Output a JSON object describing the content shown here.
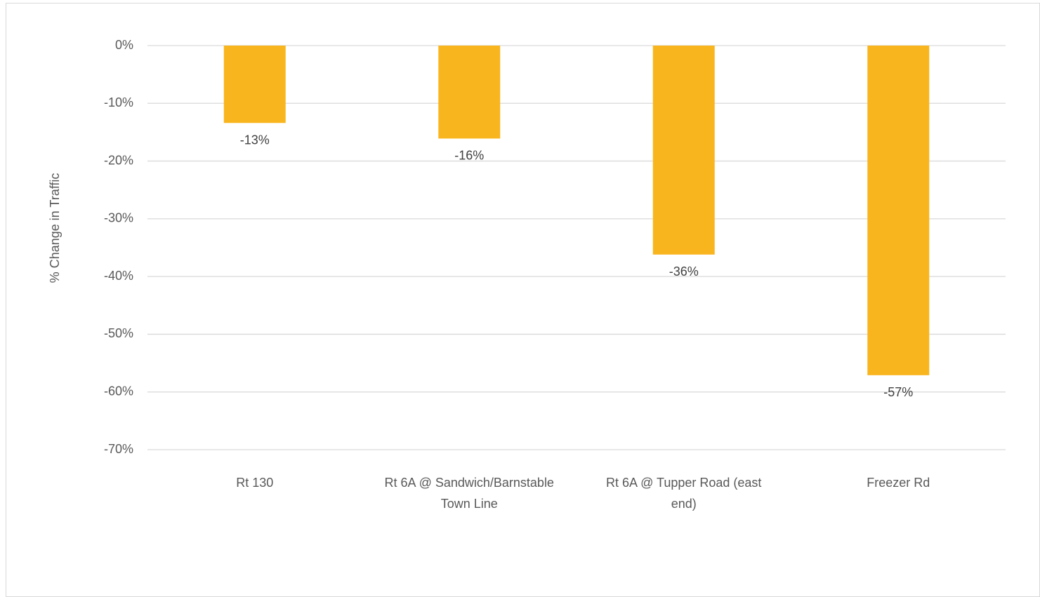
{
  "chart_data": {
    "type": "bar",
    "title": "",
    "xlabel": "",
    "ylabel": "% Change in Traffic",
    "categories": [
      [
        "Rt 130"
      ],
      [
        "Rt 6A @ Sandwich/Barnstable",
        "Town Line"
      ],
      [
        "Rt 6A @ Tupper Road (east",
        "end)"
      ],
      [
        "Freezer Rd"
      ]
    ],
    "values": [
      -13.4,
      -16.1,
      -36.2,
      -57.1
    ],
    "data_labels": [
      "-13%",
      "-16%",
      "-36%",
      "-57%"
    ],
    "ylim": [
      -70,
      0
    ],
    "yticks": [
      0,
      -10,
      -20,
      -30,
      -40,
      -50,
      -60,
      -70
    ],
    "ytick_labels": [
      "0%",
      "-10%",
      "-20%",
      "-30%",
      "-40%",
      "-50%",
      "-60%",
      "-70%"
    ],
    "grid": true,
    "legend": "none",
    "colors": {
      "bar": "#f9b51e",
      "grid": "#d9d9d9",
      "text": "#595959"
    }
  }
}
